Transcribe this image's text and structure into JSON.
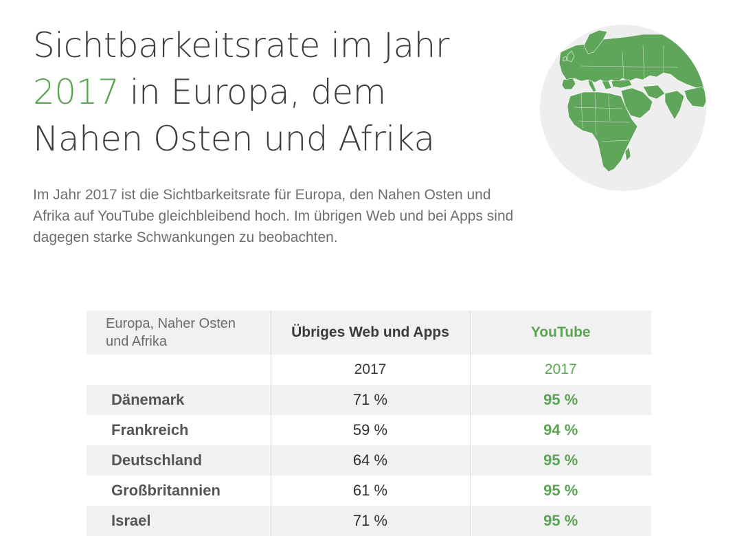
{
  "header": {
    "title_part1": "Sichtbarkeitsrate im Jahr",
    "title_year": "2017",
    "title_part2": " in Europa, dem",
    "title_part3": "Nahen Osten und Afrika",
    "intro": "Im Jahr 2017 ist die Sichtbarkeitsrate für Europa, den Nahen Osten und Afrika auf YouTube gleichbleibend hoch. Im übrigen Web und bei Apps sind dagegen starke Schwankungen zu beobachten."
  },
  "globe": {
    "icon": "globe-map-icon",
    "land_color": "#5fa55a",
    "ocean_color": "#eeeeef"
  },
  "table": {
    "region_label_line1": "Europa, Naher Osten",
    "region_label_line2": "und Afrika",
    "web_header": "Übriges Web und Apps",
    "youtube_header": "YouTube",
    "web_year": "2017",
    "youtube_year": "2017",
    "rows": [
      {
        "country": "Dänemark",
        "web": "71 %",
        "youtube": "95 %"
      },
      {
        "country": "Frankreich",
        "web": "59 %",
        "youtube": "94 %"
      },
      {
        "country": "Deutschland",
        "web": "64 %",
        "youtube": "95 %"
      },
      {
        "country": "Großbritannien",
        "web": "61 %",
        "youtube": "95 %"
      },
      {
        "country": "Israel",
        "web": "71 %",
        "youtube": "95 %"
      }
    ]
  },
  "colors": {
    "accent_green": "#5aa452",
    "header_bg": "#f1f1f1",
    "text_dark": "#3d3d3d"
  }
}
